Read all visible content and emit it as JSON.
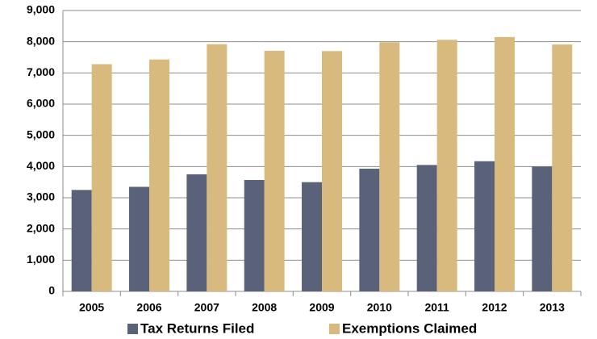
{
  "chart_data": {
    "type": "bar",
    "categories": [
      "2005",
      "2006",
      "2007",
      "2008",
      "2009",
      "2010",
      "2011",
      "2012",
      "2013"
    ],
    "series": [
      {
        "name": "Tax Returns Filed",
        "color": "#5a6279",
        "values": [
          3250,
          3350,
          3750,
          3570,
          3500,
          3930,
          4050,
          4170,
          4000
        ]
      },
      {
        "name": "Exemptions Claimed",
        "color": "#d8b97e",
        "values": [
          7280,
          7430,
          7920,
          7710,
          7700,
          7980,
          8060,
          8150,
          7910
        ]
      }
    ],
    "ylim": [
      0,
      9000
    ],
    "yticks": [
      0,
      {
        "value": 1000,
        "label": "1,000"
      },
      {
        "value": 2000,
        "label": "2,000"
      },
      {
        "value": 3000,
        "label": "3,000"
      },
      {
        "value": 4000,
        "label": "4,000"
      },
      {
        "value": 5000,
        "label": "5,000"
      },
      {
        "value": 6000,
        "label": "6,000"
      },
      {
        "value": 7000,
        "label": "7,000"
      },
      {
        "value": 8000,
        "label": "8,000"
      },
      {
        "value": 9000,
        "label": "9,000"
      }
    ],
    "grid": true,
    "legend": "bottom"
  }
}
